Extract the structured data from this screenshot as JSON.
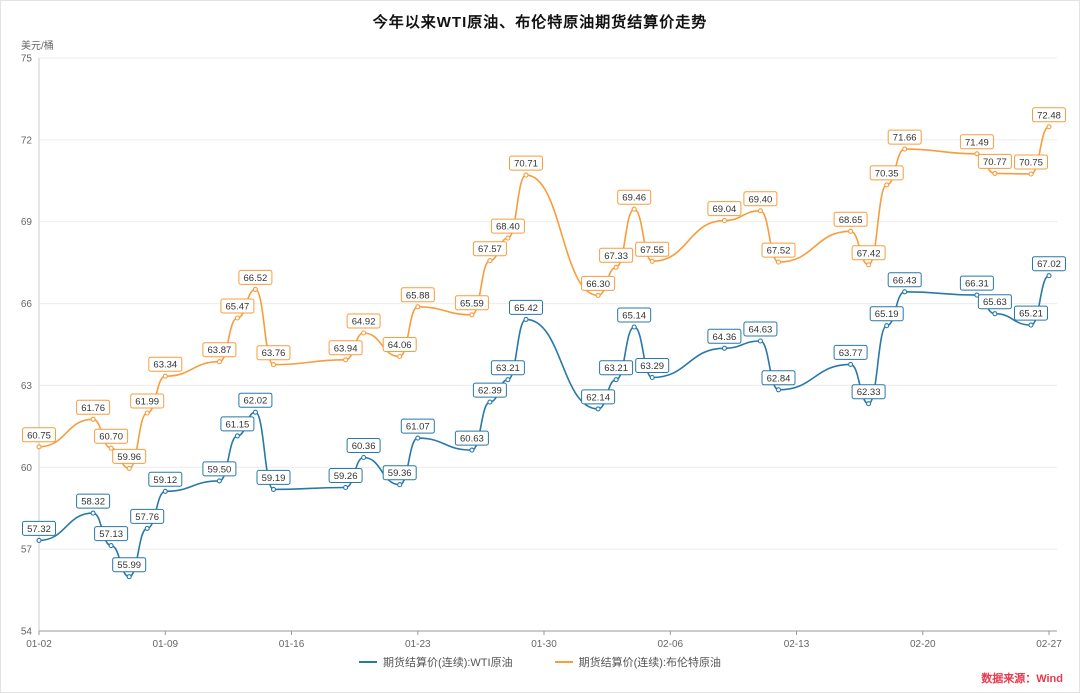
{
  "chart": {
    "title": "今年以来WTI原油、布伦特原油期货结算价走势",
    "y_unit": "美元/桶",
    "source": "数据来源：Wind",
    "source_color": "#e93a4f"
  },
  "chart_data": {
    "type": "line",
    "title": "今年以来WTI原油、布伦特原油期货结算价走势",
    "xlabel": "",
    "ylabel": "美元/桶",
    "ylim": [
      54,
      75
    ],
    "y_ticks": [
      54,
      57,
      60,
      63,
      66,
      69,
      72,
      75
    ],
    "grid": true,
    "legend_position": "bottom",
    "x_span": 56,
    "x_ticks": [
      {
        "day": 0,
        "label": "01-02"
      },
      {
        "day": 7,
        "label": "01-09"
      },
      {
        "day": 14,
        "label": "01-16"
      },
      {
        "day": 21,
        "label": "01-23"
      },
      {
        "day": 28,
        "label": "01-30"
      },
      {
        "day": 35,
        "label": "02-06"
      },
      {
        "day": 42,
        "label": "02-13"
      },
      {
        "day": 49,
        "label": "02-20"
      },
      {
        "day": 56,
        "label": "02-27"
      }
    ],
    "x_day_offsets": [
      0,
      3,
      4,
      5,
      6,
      7,
      10,
      11,
      12,
      13,
      17,
      18,
      20,
      21,
      24,
      25,
      26,
      27,
      31,
      32,
      33,
      34,
      38,
      40,
      41,
      45,
      46,
      47,
      48,
      52,
      53,
      55,
      56
    ],
    "series": [
      {
        "name": "期货结算价(连续):WTI原油",
        "color": "#2878a8",
        "values": [
          57.32,
          58.32,
          57.13,
          55.99,
          57.76,
          59.12,
          59.5,
          61.15,
          62.02,
          59.19,
          59.26,
          60.36,
          59.36,
          61.07,
          60.63,
          62.39,
          63.21,
          65.42,
          62.14,
          63.21,
          65.14,
          63.29,
          64.36,
          64.63,
          62.84,
          63.77,
          62.33,
          65.19,
          66.43,
          66.31,
          65.63,
          65.21,
          67.02
        ]
      },
      {
        "name": "期货结算价(连续):布伦特原油",
        "color": "#f89c3c",
        "values": [
          60.75,
          61.76,
          60.7,
          59.96,
          61.99,
          63.34,
          63.87,
          65.47,
          66.52,
          63.76,
          63.94,
          64.92,
          64.06,
          65.88,
          65.59,
          67.57,
          68.4,
          70.71,
          66.3,
          67.33,
          69.46,
          67.55,
          69.04,
          69.4,
          67.52,
          68.65,
          67.42,
          70.35,
          71.66,
          71.49,
          70.77,
          70.75,
          72.48
        ]
      }
    ]
  }
}
